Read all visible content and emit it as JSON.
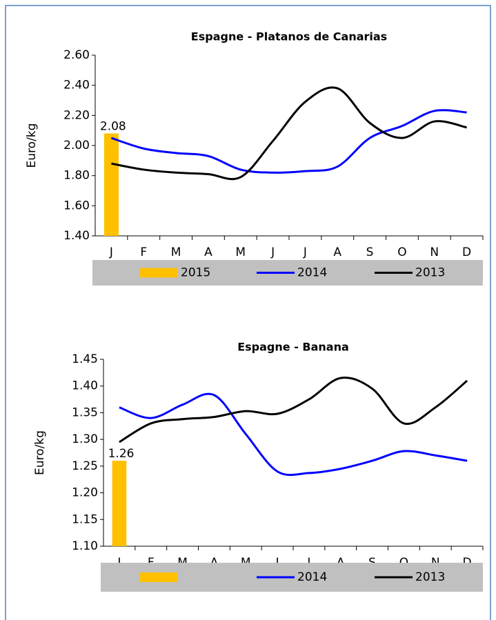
{
  "chart_data": [
    {
      "type": "line",
      "title": "Espagne - Platanos de Canarias",
      "y_label": "Euro/kg",
      "categories": [
        "J",
        "F",
        "M",
        "A",
        "M",
        "J",
        "J",
        "A",
        "S",
        "O",
        "N",
        "D"
      ],
      "ylim": [
        1.4,
        2.6
      ],
      "yticks": [
        {
          "value": 1.4,
          "label": "1.40"
        },
        {
          "value": 1.6,
          "label": "1.60"
        },
        {
          "value": 1.8,
          "label": "1.80"
        },
        {
          "value": 2.0,
          "label": "2.00"
        },
        {
          "value": 2.2,
          "label": "2.20"
        },
        {
          "value": 2.4,
          "label": "2.40"
        },
        {
          "value": 2.6,
          "label": "2.60"
        }
      ],
      "series": [
        {
          "name": "2015",
          "type": "bar",
          "color": "#ffc000",
          "values": [
            2.08,
            null,
            null,
            null,
            null,
            null,
            null,
            null,
            null,
            null,
            null,
            null
          ]
        },
        {
          "name": "2014",
          "type": "line",
          "color": "#0000ff",
          "values": [
            2.05,
            1.98,
            1.95,
            1.93,
            1.84,
            1.82,
            1.83,
            1.86,
            2.05,
            2.13,
            2.23,
            2.22
          ]
        },
        {
          "name": "2013",
          "type": "line",
          "color": "#000000",
          "values": [
            1.88,
            1.84,
            1.82,
            1.81,
            1.79,
            2.03,
            2.29,
            2.38,
            2.15,
            2.05,
            2.16,
            2.12
          ]
        }
      ]
    },
    {
      "type": "line",
      "title": "Espagne - Banana",
      "y_label": "Euro/kg",
      "categories": [
        "J",
        "F",
        "M",
        "A",
        "M",
        "J",
        "J",
        "A",
        "S",
        "O",
        "N",
        "D"
      ],
      "ylim": [
        1.1,
        1.45
      ],
      "yticks": [
        {
          "value": 1.1,
          "label": "1.10"
        },
        1.15,
        {
          "value": 1.2,
          "label": "1.20"
        },
        1.25,
        {
          "value": 1.3,
          "label": "1.30"
        },
        1.35,
        {
          "value": 1.4,
          "label": "1.40"
        },
        1.45
      ],
      "series": [
        {
          "name": null,
          "type": "bar",
          "color": "#ffc000",
          "values": [
            1.26,
            null,
            null,
            null,
            null,
            null,
            null,
            null,
            null,
            null,
            null,
            null
          ]
        },
        {
          "name": "2014",
          "type": "line",
          "color": "#0000ff",
          "values": [
            1.36,
            1.34,
            1.365,
            1.383,
            1.31,
            1.24,
            1.237,
            1.245,
            1.26,
            1.278,
            1.27,
            1.26
          ]
        },
        {
          "name": "2013",
          "type": "line",
          "color": "#000000",
          "values": [
            1.295,
            1.33,
            1.338,
            1.342,
            1.353,
            1.348,
            1.375,
            1.415,
            1.395,
            1.33,
            1.36,
            1.41
          ]
        }
      ]
    }
  ]
}
